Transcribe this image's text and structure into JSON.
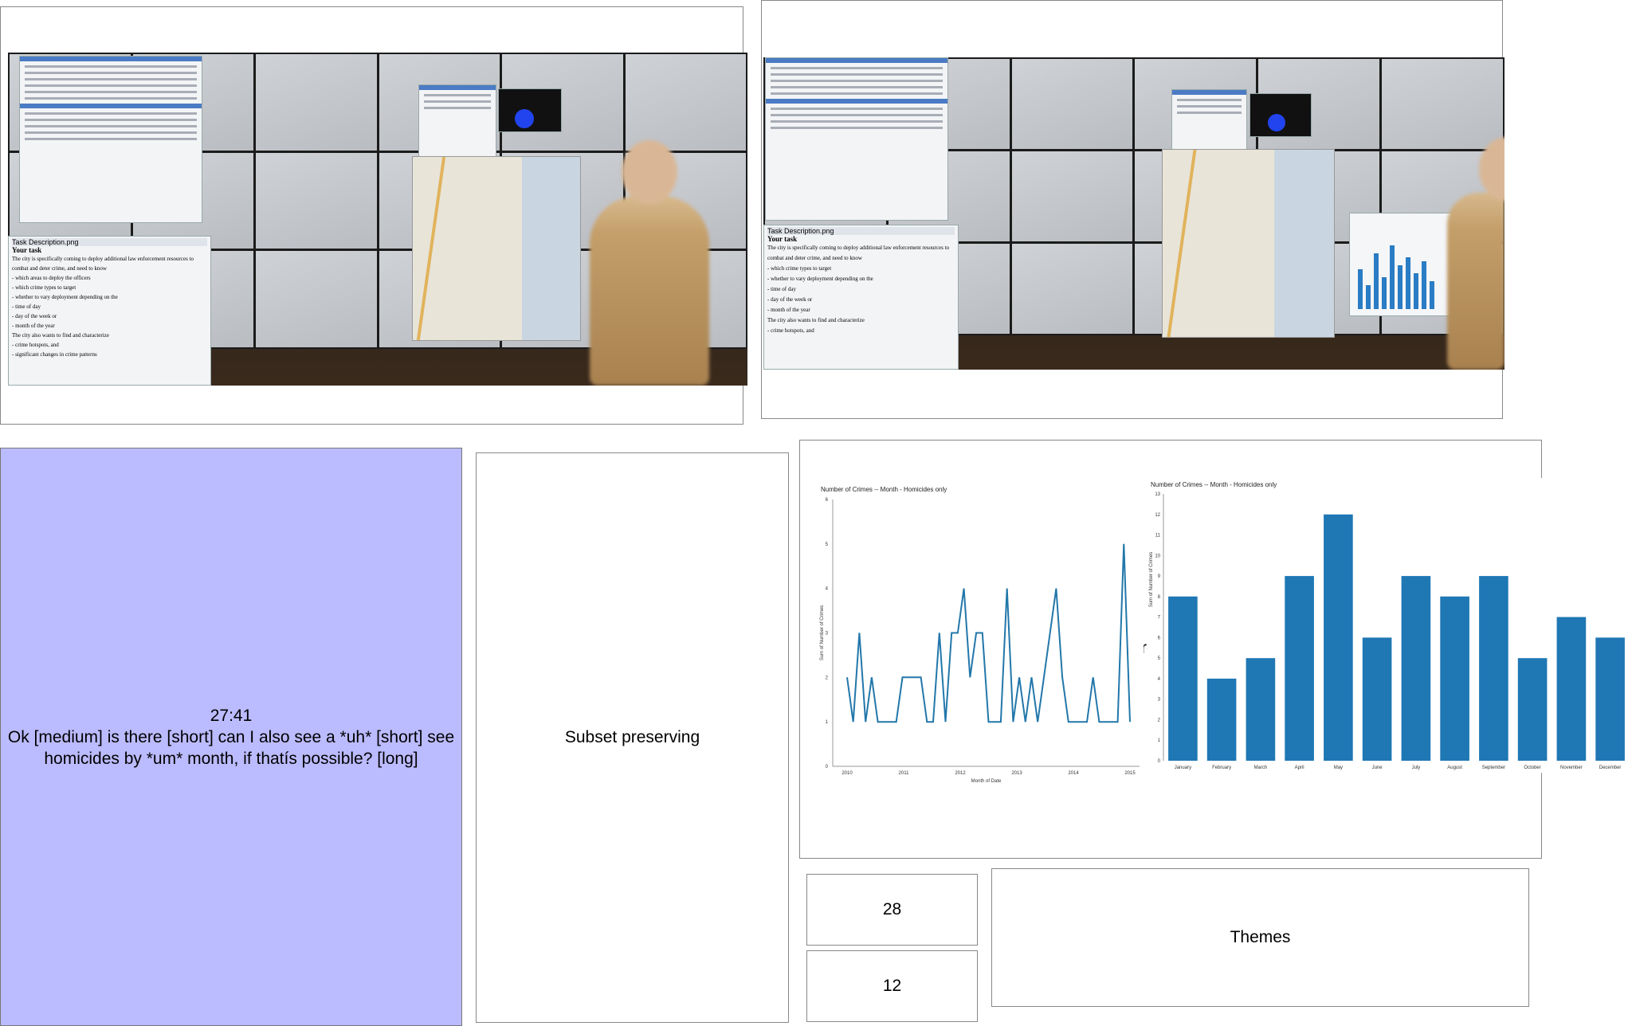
{
  "photos": [
    {
      "task_window_title": "Task Description.png",
      "task_heading": "Your task",
      "task_lines": [
        "The city is specifically coming to deploy additional law enforcement resources to",
        "combat and deter crime, and need to know",
        "- which areas to deploy the officers",
        "- which crime types to target",
        "- whether to vary deployment depending on the",
        "- time of day",
        "- day of the week or",
        "- month of the year",
        "The city also wants to find and characterize",
        "- crime hotspots, and",
        "- significant changes in crime patterns"
      ]
    },
    {
      "task_window_title": "Task Description.png",
      "task_heading": "Your task",
      "task_lines": [
        "The city is specifically coming to deploy additional law enforcement resources to",
        "combat and deter crime, and need to know",
        "- which crime types to target",
        "- whether to vary deployment depending on the",
        "- time of day",
        "- day of the week or",
        "- month of the year",
        "The city also wants to find and characterize",
        "- crime hotspots, and"
      ]
    }
  ],
  "quote": {
    "timestamp": "27:41",
    "text": "Ok [medium] is there [short] can I also see a *uh* [short] see homicides by *um* month, if thatís possible? [long]"
  },
  "subset_label": "Subset preserving",
  "count_a": "28",
  "count_b": "12",
  "themes_label": "Themes",
  "charts_behind_text": "re",
  "chart_data": [
    {
      "type": "line",
      "title": "Number of Crimes -- Month - Homicides only",
      "xlabel": "Month of Date",
      "ylabel": "Sum of Number of Crimes",
      "x_ticks": [
        "2010",
        "2011",
        "2012",
        "2013",
        "2014",
        "2015"
      ],
      "ylim": [
        0,
        6
      ],
      "y_ticks": [
        0,
        1,
        2,
        3,
        4,
        5,
        6
      ],
      "values": [
        2,
        1,
        3,
        1,
        2,
        1,
        1,
        1,
        1,
        2,
        2,
        2,
        2,
        1,
        1,
        3,
        1,
        3,
        3,
        4,
        2,
        3,
        3,
        1,
        1,
        1,
        4,
        1,
        2,
        1,
        2,
        1,
        2,
        3,
        4,
        2,
        1,
        1,
        1,
        1,
        2,
        1,
        1,
        1,
        1,
        5,
        1
      ],
      "color": "#2277aa"
    },
    {
      "type": "bar",
      "title": "Number of Crimes -- Month - Homicides only",
      "ylabel": "Sum of Number of Crimes",
      "categories": [
        "January",
        "February",
        "March",
        "April",
        "May",
        "June",
        "July",
        "August",
        "September",
        "October",
        "November",
        "December"
      ],
      "values": [
        8,
        4,
        5,
        9,
        12,
        6,
        9,
        8,
        9,
        5,
        7,
        6
      ],
      "ylim": [
        0,
        13
      ],
      "y_ticks": [
        0,
        1,
        2,
        3,
        4,
        5,
        6,
        7,
        8,
        9,
        10,
        11,
        12,
        13
      ],
      "color": "#1f77b4"
    }
  ]
}
